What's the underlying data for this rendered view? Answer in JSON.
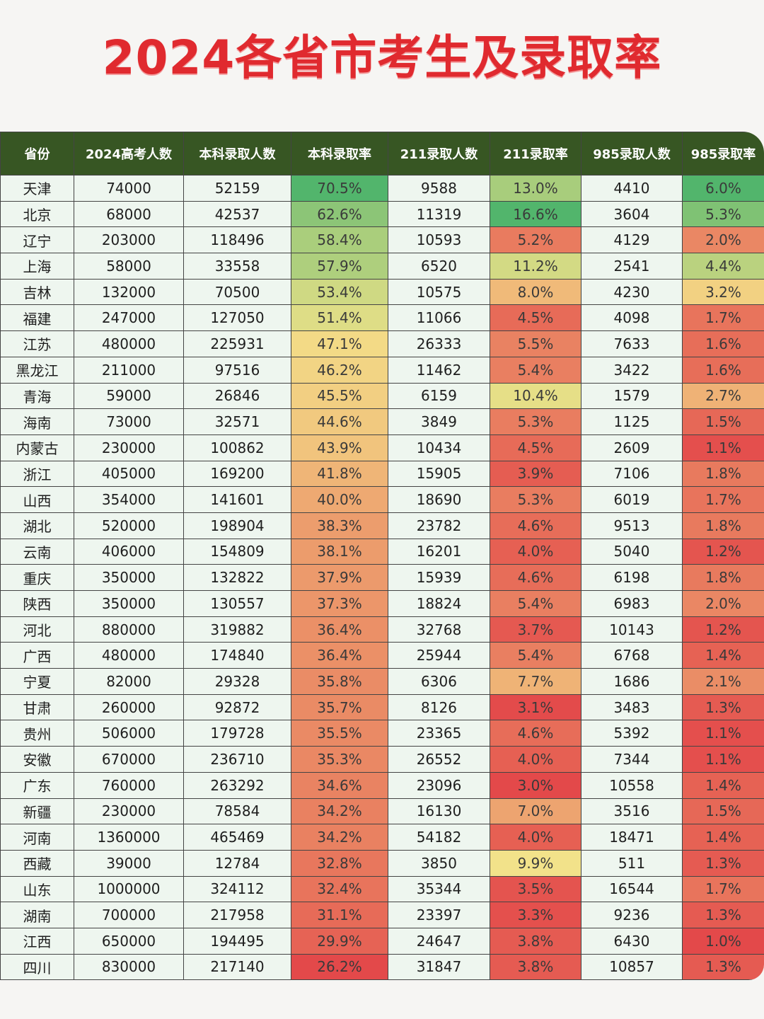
{
  "title": "2024各省市考生及录取率",
  "chart_data": {
    "type": "table",
    "title": "2024各省市考生及录取率",
    "columns": [
      "省份",
      "2024高考人数",
      "本科录取人数",
      "本科录取率",
      "211录取人数",
      "211录取率",
      "985录取人数",
      "985录取率"
    ],
    "rows": [
      [
        "天津",
        "74000",
        "52159",
        "70.5%",
        "9588",
        "13.0%",
        "4410",
        "6.0%"
      ],
      [
        "北京",
        "68000",
        "42537",
        "62.6%",
        "11319",
        "16.6%",
        "3604",
        "5.3%"
      ],
      [
        "辽宁",
        "203000",
        "118496",
        "58.4%",
        "10593",
        "5.2%",
        "4129",
        "2.0%"
      ],
      [
        "上海",
        "58000",
        "33558",
        "57.9%",
        "6520",
        "11.2%",
        "2541",
        "4.4%"
      ],
      [
        "吉林",
        "132000",
        "70500",
        "53.4%",
        "10575",
        "8.0%",
        "4230",
        "3.2%"
      ],
      [
        "福建",
        "247000",
        "127050",
        "51.4%",
        "11066",
        "4.5%",
        "4098",
        "1.7%"
      ],
      [
        "江苏",
        "480000",
        "225931",
        "47.1%",
        "26333",
        "5.5%",
        "7633",
        "1.6%"
      ],
      [
        "黑龙江",
        "211000",
        "97516",
        "46.2%",
        "11462",
        "5.4%",
        "3422",
        "1.6%"
      ],
      [
        "青海",
        "59000",
        "26846",
        "45.5%",
        "6159",
        "10.4%",
        "1579",
        "2.7%"
      ],
      [
        "海南",
        "73000",
        "32571",
        "44.6%",
        "3849",
        "5.3%",
        "1125",
        "1.5%"
      ],
      [
        "内蒙古",
        "230000",
        "100862",
        "43.9%",
        "10434",
        "4.5%",
        "2609",
        "1.1%"
      ],
      [
        "浙江",
        "405000",
        "169200",
        "41.8%",
        "15905",
        "3.9%",
        "7106",
        "1.8%"
      ],
      [
        "山西",
        "354000",
        "141601",
        "40.0%",
        "18690",
        "5.3%",
        "6019",
        "1.7%"
      ],
      [
        "湖北",
        "520000",
        "198904",
        "38.3%",
        "23782",
        "4.6%",
        "9513",
        "1.8%"
      ],
      [
        "云南",
        "406000",
        "154809",
        "38.1%",
        "16201",
        "4.0%",
        "5040",
        "1.2%"
      ],
      [
        "重庆",
        "350000",
        "132822",
        "37.9%",
        "15939",
        "4.6%",
        "6198",
        "1.8%"
      ],
      [
        "陕西",
        "350000",
        "130557",
        "37.3%",
        "18824",
        "5.4%",
        "6983",
        "2.0%"
      ],
      [
        "河北",
        "880000",
        "319882",
        "36.4%",
        "32768",
        "3.7%",
        "10143",
        "1.2%"
      ],
      [
        "广西",
        "480000",
        "174840",
        "36.4%",
        "25944",
        "5.4%",
        "6768",
        "1.4%"
      ],
      [
        "宁夏",
        "82000",
        "29328",
        "35.8%",
        "6306",
        "7.7%",
        "1686",
        "2.1%"
      ],
      [
        "甘肃",
        "260000",
        "92872",
        "35.7%",
        "8126",
        "3.1%",
        "3483",
        "1.3%"
      ],
      [
        "贵州",
        "506000",
        "179728",
        "35.5%",
        "23365",
        "4.6%",
        "5392",
        "1.1%"
      ],
      [
        "安徽",
        "670000",
        "236710",
        "35.3%",
        "26552",
        "4.0%",
        "7344",
        "1.1%"
      ],
      [
        "广东",
        "760000",
        "263292",
        "34.6%",
        "23096",
        "3.0%",
        "10558",
        "1.4%"
      ],
      [
        "新疆",
        "230000",
        "78584",
        "34.2%",
        "16130",
        "7.0%",
        "3516",
        "1.5%"
      ],
      [
        "河南",
        "1360000",
        "465469",
        "34.2%",
        "54182",
        "4.0%",
        "18471",
        "1.4%"
      ],
      [
        "西藏",
        "39000",
        "12784",
        "32.8%",
        "3850",
        "9.9%",
        "511",
        "1.3%"
      ],
      [
        "山东",
        "1000000",
        "324112",
        "32.4%",
        "35344",
        "3.5%",
        "16544",
        "1.7%"
      ],
      [
        "湖南",
        "700000",
        "217958",
        "31.1%",
        "23397",
        "3.3%",
        "9236",
        "1.3%"
      ],
      [
        "江西",
        "650000",
        "194495",
        "29.9%",
        "24647",
        "3.8%",
        "6430",
        "1.0%"
      ],
      [
        "四川",
        "830000",
        "217140",
        "26.2%",
        "31847",
        "3.8%",
        "10857",
        "1.3%"
      ]
    ],
    "heat_columns": [
      3,
      5,
      7
    ],
    "heat_scale": {
      "low": "#e3494a",
      "mid": "#f4e38a",
      "high": "#52b56c"
    }
  },
  "colors": {
    "title": "#e02a2f",
    "header_bg": "#375623",
    "header_text": "#ffffff",
    "plain_cell_bg": "#eef6ef"
  }
}
